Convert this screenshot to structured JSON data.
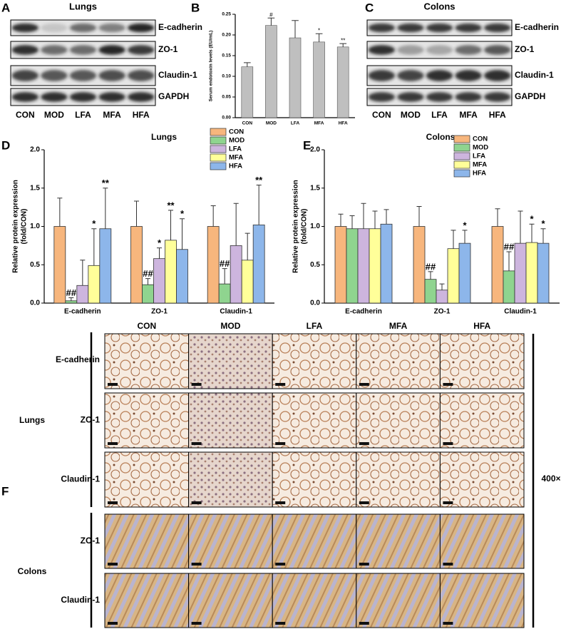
{
  "panel_labels": [
    "A",
    "B",
    "C",
    "D",
    "E",
    "F"
  ],
  "blots": [
    {
      "title": "Lungs",
      "proteins": [
        "E-cadherin",
        "ZO-1",
        "Claudin-1",
        "GAPDH"
      ],
      "lanes": [
        "CON",
        "MOD",
        "LFA",
        "MFA",
        "HFA"
      ]
    },
    {
      "title": "Colons",
      "proteins": [
        "E-cadherin",
        "ZO-1",
        "Claudin-1",
        "GAPDH"
      ],
      "lanes": [
        "CON",
        "MOD",
        "LFA",
        "MFA",
        "HFA"
      ]
    }
  ],
  "chart_data": [
    {
      "type": "bar",
      "y_label": "Serum endotoxin levels (EU/mL)",
      "categories": [
        "CON",
        "MOD",
        "LFA",
        "MFA",
        "HFA"
      ],
      "values": [
        0.123,
        0.223,
        0.193,
        0.183,
        0.171
      ],
      "errors": [
        0.01,
        0.018,
        0.042,
        0.02,
        0.008
      ],
      "annotations": [
        null,
        "#",
        null,
        "*",
        "**"
      ],
      "color": "#bfbfbf",
      "ylim": [
        0,
        0.25
      ],
      "yticks": [
        {
          "value": 0,
          "label": "0.00"
        },
        {
          "value": 0.05,
          "label": "0.05"
        },
        {
          "value": 0.1,
          "label": "0.10"
        },
        {
          "value": 0.15,
          "label": "0.15"
        },
        {
          "value": 0.2,
          "label": "0.20"
        },
        {
          "value": 0.25,
          "label": "0.25"
        }
      ]
    },
    {
      "type": "grouped_bar",
      "title": "Lungs",
      "y_label": [
        "Relative protein expression",
        "(fold/CON)"
      ],
      "categories": [
        "E-cadherin",
        "ZO-1",
        "Claudin-1"
      ],
      "series": [
        {
          "name": "CON",
          "color": "#f7b67d",
          "values": [
            1.0,
            1.0,
            1.0
          ],
          "errors": [
            0.37,
            0.33,
            0.27
          ],
          "annotations": [
            null,
            null,
            null
          ]
        },
        {
          "name": "MOD",
          "color": "#8fd48f",
          "values": [
            0.03,
            0.24,
            0.25
          ],
          "errors": [
            0.04,
            0.08,
            0.2
          ],
          "annotations": [
            "##",
            "##",
            "##"
          ]
        },
        {
          "name": "LFA",
          "color": "#cdb5de",
          "values": [
            0.23,
            0.58,
            0.75
          ],
          "errors": [
            0.33,
            0.14,
            0.55
          ],
          "annotations": [
            null,
            "*",
            null
          ]
        },
        {
          "name": "MFA",
          "color": "#ffff99",
          "values": [
            0.49,
            0.82,
            0.56
          ],
          "errors": [
            0.48,
            0.39,
            0.35
          ],
          "annotations": [
            "*",
            "**",
            null
          ]
        },
        {
          "name": "HFA",
          "color": "#8db6ea",
          "values": [
            0.97,
            0.7,
            1.02
          ],
          "errors": [
            0.53,
            0.4,
            0.52
          ],
          "annotations": [
            "**",
            "*",
            "**"
          ]
        }
      ],
      "ylim": [
        0,
        2
      ],
      "yticks": [
        {
          "value": 0,
          "label": "0.0"
        },
        {
          "value": 0.5,
          "label": "0.5"
        },
        {
          "value": 1,
          "label": "1.0"
        },
        {
          "value": 1.5,
          "label": "1.5"
        },
        {
          "value": 2,
          "label": "2.0"
        }
      ],
      "legend": "top-right"
    },
    {
      "type": "grouped_bar",
      "title": "Colons",
      "y_label": [
        "Relative protein expression",
        "(fold/CON)"
      ],
      "categories": [
        "E-cadherin",
        "ZO-1",
        "Claudin-1"
      ],
      "series": [
        {
          "name": "CON",
          "color": "#f7b67d",
          "values": [
            1.0,
            1.0,
            1.0
          ],
          "errors": [
            0.16,
            0.26,
            0.23
          ],
          "annotations": [
            null,
            null,
            null
          ]
        },
        {
          "name": "MOD",
          "color": "#8fd48f",
          "values": [
            0.97,
            0.31,
            0.42
          ],
          "errors": [
            0.17,
            0.1,
            0.25
          ],
          "annotations": [
            null,
            "##",
            "##"
          ]
        },
        {
          "name": "LFA",
          "color": "#cdb5de",
          "values": [
            0.97,
            0.17,
            0.78
          ],
          "errors": [
            0.33,
            0.08,
            0.42
          ],
          "annotations": [
            null,
            null,
            null
          ]
        },
        {
          "name": "MFA",
          "color": "#ffff99",
          "values": [
            0.97,
            0.71,
            0.79
          ],
          "errors": [
            0.23,
            0.24,
            0.24
          ],
          "annotations": [
            null,
            null,
            "*"
          ]
        },
        {
          "name": "HFA",
          "color": "#8db6ea",
          "values": [
            1.03,
            0.78,
            0.78
          ],
          "errors": [
            0.19,
            0.17,
            0.19
          ],
          "annotations": [
            null,
            "*",
            "*"
          ]
        }
      ],
      "ylim": [
        0,
        2
      ],
      "yticks": [
        {
          "value": 0,
          "label": "0.0"
        },
        {
          "value": 0.5,
          "label": "0.5"
        },
        {
          "value": 1,
          "label": "1.0"
        },
        {
          "value": 1.5,
          "label": "1.5"
        },
        {
          "value": 2,
          "label": "2.0"
        }
      ],
      "legend": "top-right"
    }
  ],
  "ihc": {
    "columns": [
      "CON",
      "MOD",
      "LFA",
      "MFA",
      "HFA"
    ],
    "groups": [
      {
        "name": "Lungs",
        "rows": [
          "E-cadherin",
          "ZO-1",
          "Claudin-1"
        ]
      },
      {
        "name": "Colons",
        "rows": [
          "ZO-1",
          "Claudin-1"
        ]
      }
    ],
    "magnification": "400×"
  }
}
